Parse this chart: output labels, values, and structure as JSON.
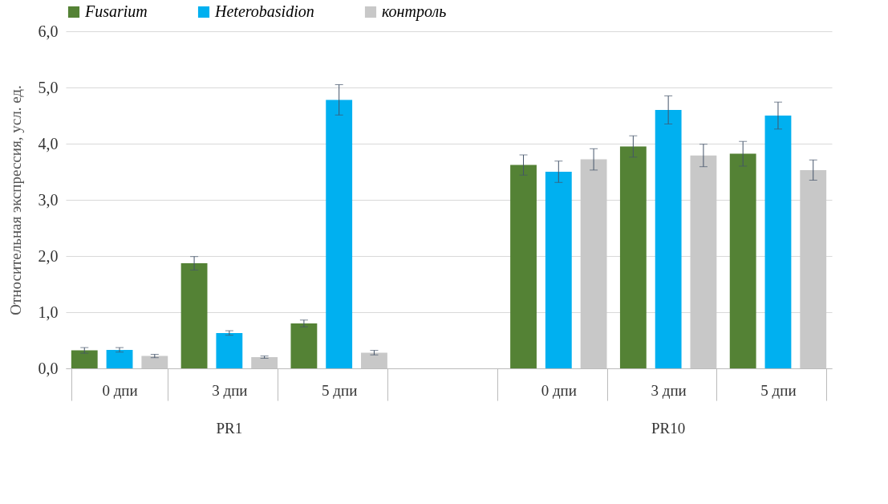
{
  "chart_data": {
    "type": "bar",
    "ylabel": "Относительная экспрессия, усл. ед.",
    "categories": [
      "0 дпи",
      "3 дпи",
      "5 дпи",
      null,
      "0 дпи",
      "3 дпи",
      "5 дпи"
    ],
    "series": [
      {
        "name": "Fusarium",
        "color": "#548235",
        "values": [
          0.32,
          1.87,
          0.8,
          null,
          3.62,
          3.95,
          3.82
        ],
        "errors": [
          0.05,
          0.12,
          0.06,
          null,
          0.18,
          0.19,
          0.22
        ]
      },
      {
        "name": "Heterobasidion",
        "color": "#00b0f0",
        "values": [
          0.33,
          0.63,
          4.78,
          null,
          3.5,
          4.6,
          4.5
        ],
        "errors": [
          0.04,
          0.04,
          0.27,
          null,
          0.19,
          0.25,
          0.24
        ]
      },
      {
        "name": "контроль",
        "color": "#c8c8c8",
        "values": [
          0.22,
          0.2,
          0.28,
          null,
          3.72,
          3.79,
          3.53
        ],
        "errors": [
          0.03,
          0.02,
          0.04,
          null,
          0.19,
          0.2,
          0.18
        ]
      }
    ],
    "annotations": [
      "PR1",
      "PR10"
    ],
    "ylim": [
      0,
      6
    ],
    "yticks": [
      {
        "value": 0,
        "label": "0,0"
      },
      {
        "value": 1,
        "label": "1,0"
      },
      {
        "value": 2,
        "label": "2,0"
      },
      {
        "value": 3,
        "label": "3,0"
      },
      {
        "value": 4,
        "label": "4,0"
      },
      {
        "value": 5,
        "label": "5,0"
      },
      {
        "value": 6,
        "label": "6,0"
      }
    ],
    "grid": "y",
    "legend": "top"
  }
}
